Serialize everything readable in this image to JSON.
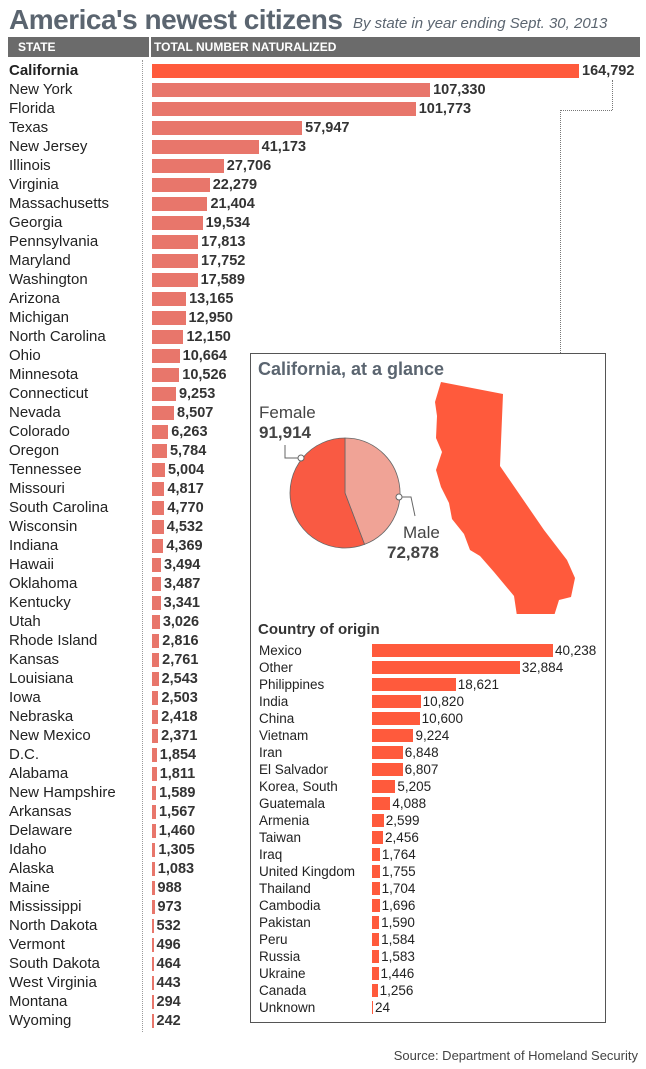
{
  "title": "America's newest citizens",
  "subtitle": "By state in year ending Sept. 30, 2013",
  "header": {
    "state": "STATE",
    "total": "TOTAL NUMBER NATURALIZED"
  },
  "colors": {
    "highlight": "#ff5a3c",
    "bar": "#e8766b",
    "header": "#6b6b6b",
    "female": "#f95a43",
    "male": "#f0a396",
    "text": "#5b6570"
  },
  "chart_data": [
    {
      "type": "bar",
      "orientation": "horizontal",
      "title": "America's newest citizens",
      "subtitle": "By state in year ending Sept. 30, 2013",
      "xlabel": "TOTAL NUMBER NATURALIZED",
      "ylabel": "STATE",
      "highlight": "California",
      "grid": false,
      "xlim": [
        0,
        164792
      ],
      "categories": [
        "California",
        "New York",
        "Florida",
        "Texas",
        "New Jersey",
        "Illinois",
        "Virginia",
        "Massachusetts",
        "Georgia",
        "Pennsylvania",
        "Maryland",
        "Washington",
        "Arizona",
        "Michigan",
        "North Carolina",
        "Ohio",
        "Minnesota",
        "Connecticut",
        "Nevada",
        "Colorado",
        "Oregon",
        "Tennessee",
        "Missouri",
        "South Carolina",
        "Wisconsin",
        "Indiana",
        "Hawaii",
        "Oklahoma",
        "Kentucky",
        "Utah",
        "Rhode Island",
        "Kansas",
        "Louisiana",
        "Iowa",
        "Nebraska",
        "New Mexico",
        "D.C.",
        "Alabama",
        "New Hampshire",
        "Arkansas",
        "Delaware",
        "Idaho",
        "Alaska",
        "Maine",
        "Mississippi",
        "North Dakota",
        "Vermont",
        "South Dakota",
        "West Virginia",
        "Montana",
        "Wyoming"
      ],
      "values": [
        164792,
        107330,
        101773,
        57947,
        41173,
        27706,
        22279,
        21404,
        19534,
        17813,
        17752,
        17589,
        13165,
        12950,
        12150,
        10664,
        10526,
        9253,
        8507,
        6263,
        5784,
        5004,
        4817,
        4770,
        4532,
        4369,
        3494,
        3487,
        3341,
        3026,
        2816,
        2761,
        2543,
        2503,
        2418,
        2371,
        1854,
        1811,
        1589,
        1567,
        1460,
        1305,
        1083,
        988,
        973,
        532,
        496,
        464,
        443,
        294,
        242
      ],
      "value_labels": [
        "164,792",
        "107,330",
        "101,773",
        "57,947",
        "41,173",
        "27,706",
        "22,279",
        "21,404",
        "19,534",
        "17,813",
        "17,752",
        "17,589",
        "13,165",
        "12,950",
        "12,150",
        "10,664",
        "10,526",
        "9,253",
        "8,507",
        "6,263",
        "5,784",
        "5,004",
        "4,817",
        "4,770",
        "4,532",
        "4,369",
        "3,494",
        "3,487",
        "3,341",
        "3,026",
        "2,816",
        "2,761",
        "2,543",
        "2,503",
        "2,418",
        "2,371",
        "1,854",
        "1,811",
        "1,589",
        "1,567",
        "1,460",
        "1,305",
        "1,083",
        "988",
        "973",
        "532",
        "496",
        "464",
        "443",
        "294",
        "242"
      ]
    },
    {
      "type": "pie",
      "title": "California, at a glance",
      "slices": [
        {
          "label": "Female",
          "value": 91914,
          "value_label": "91,914",
          "color": "#f95a43"
        },
        {
          "label": "Male",
          "value": 72878,
          "value_label": "72,878",
          "color": "#f0a396"
        }
      ]
    },
    {
      "type": "bar",
      "orientation": "horizontal",
      "title": "Country of origin",
      "grid": false,
      "xlim": [
        0,
        40238
      ],
      "categories": [
        "Mexico",
        "Other",
        "Philippines",
        "India",
        "China",
        "Vietnam",
        "Iran",
        "El Salvador",
        "Korea, South",
        "Guatemala",
        "Armenia",
        "Taiwan",
        "Iraq",
        "United Kingdom",
        "Thailand",
        "Cambodia",
        "Pakistan",
        "Peru",
        "Russia",
        "Ukraine",
        "Canada",
        "Unknown"
      ],
      "values": [
        40238,
        32884,
        18621,
        10820,
        10600,
        9224,
        6848,
        6807,
        5205,
        4088,
        2599,
        2456,
        1764,
        1755,
        1704,
        1696,
        1590,
        1584,
        1583,
        1446,
        1256,
        24
      ],
      "value_labels": [
        "40,238",
        "32,884",
        "18,621",
        "10,820",
        "10,600",
        "9,224",
        "6,848",
        "6,807",
        "5,205",
        "4,088",
        "2,599",
        "2,456",
        "1,764",
        "1,755",
        "1,704",
        "1,696",
        "1,590",
        "1,584",
        "1,583",
        "1,446",
        "1,256",
        "24"
      ]
    }
  ],
  "source": "Source: Department of Homeland Security"
}
